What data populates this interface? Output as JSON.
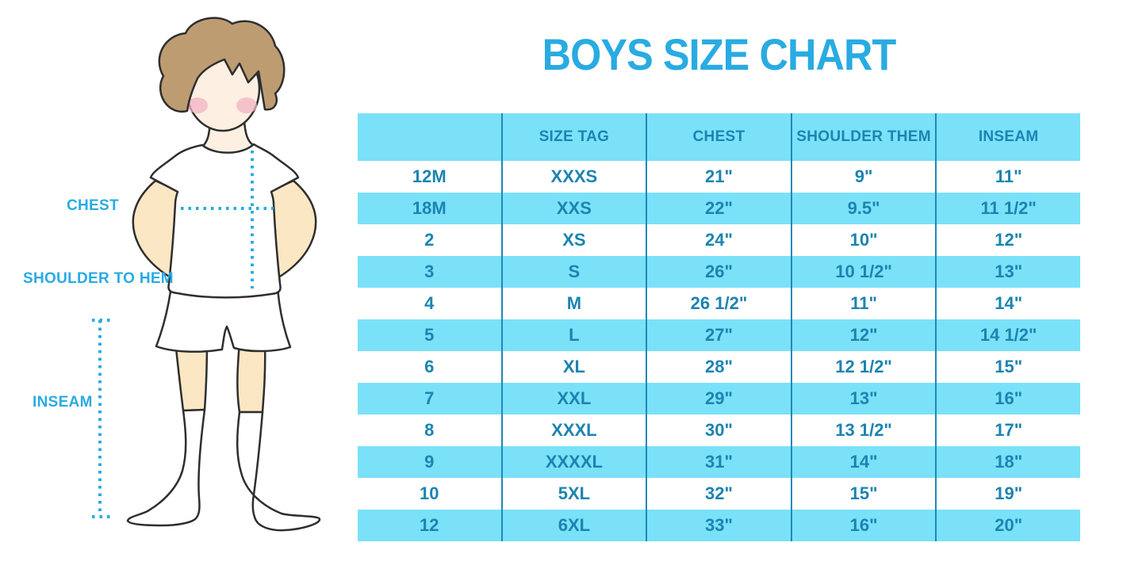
{
  "figure": {
    "labels": {
      "chest": "CHEST",
      "shoulder_to_hem": "SHOULDER TO HEM",
      "inseam": "INSEAM"
    }
  },
  "chart_data": {
    "type": "table",
    "title": "BOYS SIZE CHART",
    "headers": [
      "",
      "SIZE TAG",
      "CHEST",
      "SHOULDER THEM",
      "INSEAM"
    ],
    "rows": [
      [
        "12M",
        "XXXS",
        "21\"",
        "9\"",
        "11\""
      ],
      [
        "18M",
        "XXS",
        "22\"",
        "9.5\"",
        "11 1/2\""
      ],
      [
        "2",
        "XS",
        "24\"",
        "10\"",
        "12\""
      ],
      [
        "3",
        "S",
        "26\"",
        "10 1/2\"",
        "13\""
      ],
      [
        "4",
        "M",
        "26 1/2\"",
        "11\"",
        "14\""
      ],
      [
        "5",
        "L",
        "27\"",
        "12\"",
        "14 1/2\""
      ],
      [
        "6",
        "XL",
        "28\"",
        "12 1/2\"",
        "15\""
      ],
      [
        "7",
        "XXL",
        "29\"",
        "13\"",
        "16\""
      ],
      [
        "8",
        "XXXL",
        "30\"",
        "13 1/2\"",
        "17\""
      ],
      [
        "9",
        "XXXXL",
        "31\"",
        "14\"",
        "18\""
      ],
      [
        "10",
        "5XL",
        "32\"",
        "15\"",
        "19\""
      ],
      [
        "12",
        "6XL",
        "33\"",
        "16\"",
        "20\""
      ]
    ],
    "layout": {
      "grid": "vertical column separators only",
      "row_striping": "header cyan, data rows alternate white / cyan starting white",
      "legend_position": "none"
    }
  },
  "colors": {
    "accent_blue": "#29abe2",
    "row_stripe_cyan": "#7ae1f9",
    "table_text_blue": "#1c84b0",
    "grid_line_blue": "#1f88b9",
    "hair_brown": "#bd9c72",
    "skin_face": "#fdf0e2",
    "skin_limbs": "#fbe7c3",
    "blush_pink": "#f1b3c3",
    "outline_dark": "#2e2e2e"
  }
}
